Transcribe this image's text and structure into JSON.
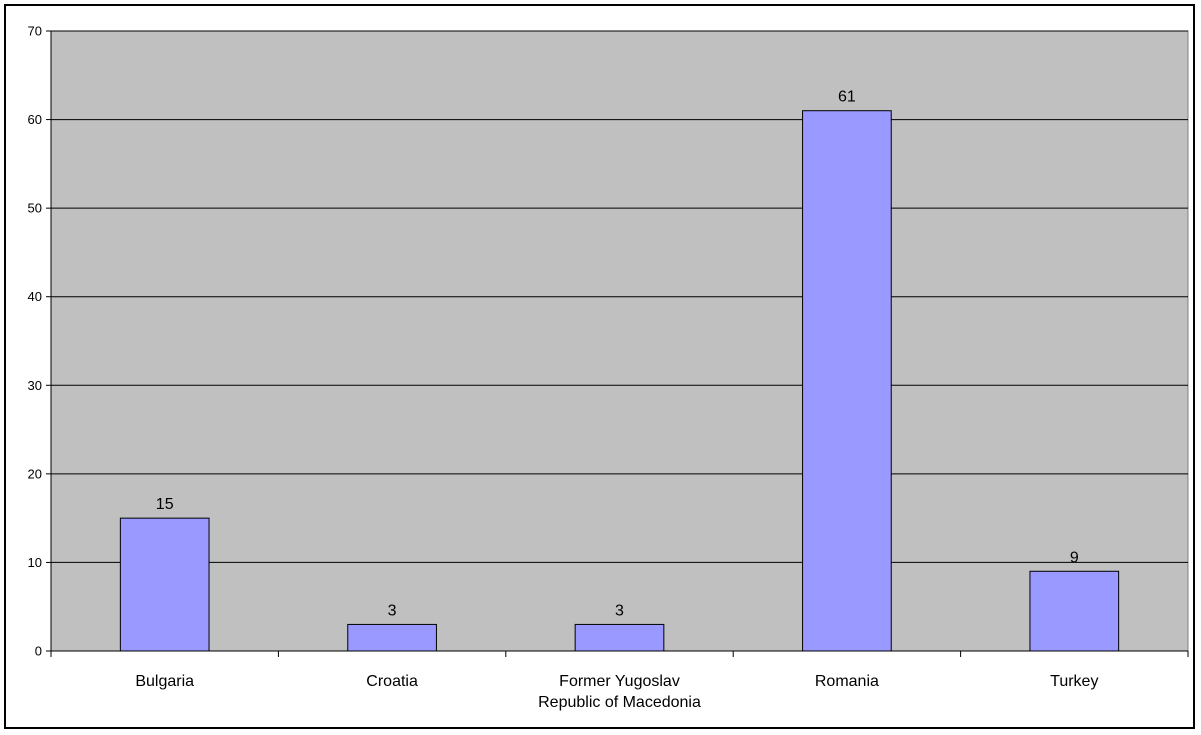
{
  "chart_data": {
    "type": "bar",
    "title": "",
    "xlabel": "",
    "ylabel": "",
    "categories": [
      [
        "Bulgaria"
      ],
      [
        "Croatia"
      ],
      [
        "Former Yugoslav",
        "Republic of Macedonia"
      ],
      [
        "Romania"
      ],
      [
        "Turkey"
      ]
    ],
    "values": [
      15,
      3,
      3,
      61,
      9
    ],
    "data_labels": [
      "15",
      "3",
      "3",
      "61",
      "9"
    ],
    "ylim": [
      0,
      70
    ],
    "yticks": [
      0,
      10,
      20,
      30,
      40,
      50,
      60,
      70
    ],
    "ytick_labels": [
      "0",
      "10",
      "20",
      "30",
      "40",
      "50",
      "60",
      "70"
    ],
    "grid": true,
    "legend": "none",
    "colors": {
      "bar_fill": "#9999ff",
      "bar_stroke": "#000000",
      "plot_background": "#c0c0c0",
      "gridline": "#000000"
    }
  }
}
